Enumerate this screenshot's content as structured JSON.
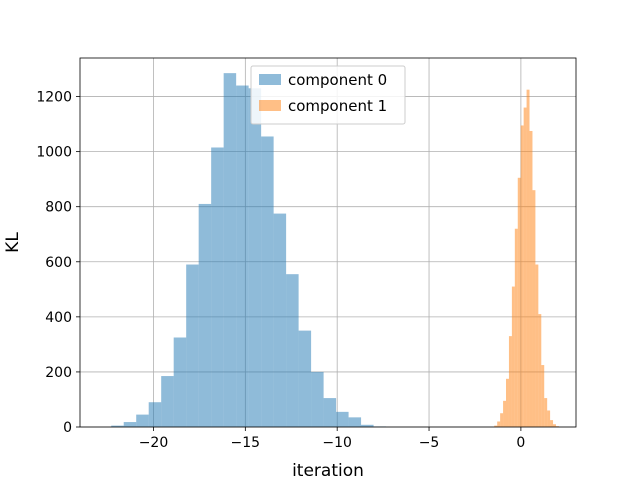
{
  "chart_data": {
    "type": "histogram",
    "xlabel": "iteration",
    "ylabel": "KL",
    "xlim": [
      -24,
      3
    ],
    "ylim": [
      0,
      1340
    ],
    "x_ticks": [
      -20,
      -15,
      -10,
      -5,
      0
    ],
    "y_ticks": [
      0,
      200,
      400,
      600,
      800,
      1000,
      1200
    ],
    "grid": true,
    "legend_position": "top-center",
    "series": [
      {
        "name": "component 0",
        "color": "#1f77b4",
        "opacity": 0.5,
        "bin_start": -22.3,
        "bin_width": 0.68,
        "counts": [
          5,
          18,
          45,
          90,
          185,
          325,
          590,
          810,
          1015,
          1285,
          1240,
          1230,
          1055,
          775,
          555,
          350,
          200,
          105,
          55,
          35,
          8,
          2
        ]
      },
      {
        "name": "component 1",
        "color": "#ff7f0e",
        "opacity": 0.5,
        "bin_start": -1.45,
        "bin_width": 0.16,
        "counts": [
          5,
          20,
          50,
          95,
          175,
          330,
          510,
          720,
          905,
          1095,
          1160,
          1225,
          1075,
          860,
          590,
          410,
          225,
          105,
          60,
          25,
          10,
          3
        ]
      }
    ]
  }
}
